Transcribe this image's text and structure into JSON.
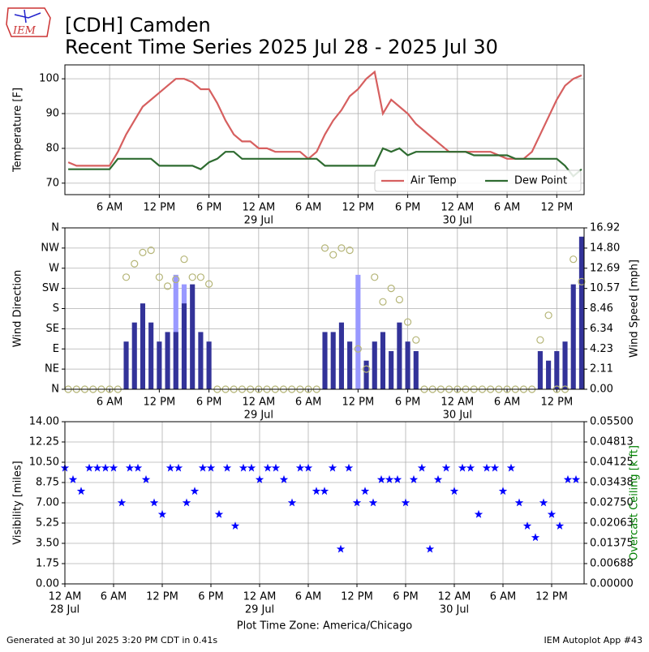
{
  "header": {
    "title": "[CDH] Camden",
    "subtitle": "Recent Time Series 2025 Jul 28 - 2025 Jul 30",
    "logo": "IEM"
  },
  "footer": {
    "left": "Generated at 30 Jul 2025 3:20 PM CDT in 0.41s",
    "right": "IEM Autoplot App #43"
  },
  "chart_data": [
    {
      "type": "line",
      "ylabel": "Temperature [F]",
      "legend": "lower right",
      "grid": true,
      "xlim": [
        0.6,
        63.3
      ],
      "ylim": [
        66.7,
        104
      ],
      "yticks": [
        70,
        80,
        90,
        100
      ],
      "xticks": [
        {
          "value": 6,
          "label": "6 AM"
        },
        {
          "value": 12,
          "label": "12 PM"
        },
        {
          "value": 18,
          "label": "6 PM"
        },
        {
          "value": 24,
          "label": "12 AM",
          "date": "29 Jul"
        },
        {
          "value": 30,
          "label": "6 AM"
        },
        {
          "value": 36,
          "label": "12 PM"
        },
        {
          "value": 42,
          "label": "6 PM"
        },
        {
          "value": 48,
          "label": "12 AM",
          "date": "30 Jul"
        },
        {
          "value": 54,
          "label": "6 AM"
        },
        {
          "value": 60,
          "label": "12 PM"
        }
      ],
      "x": [
        1,
        2,
        3,
        4,
        5,
        6,
        7,
        8,
        9,
        10,
        11,
        12,
        13,
        14,
        15,
        16,
        17,
        18,
        19,
        20,
        21,
        22,
        23,
        24,
        25,
        26,
        27,
        28,
        29,
        30,
        31,
        32,
        33,
        34,
        35,
        36,
        37,
        38,
        39,
        40,
        41,
        42,
        43,
        44,
        45,
        46,
        47,
        48,
        49,
        50,
        51,
        52,
        53,
        54,
        55,
        56,
        57,
        58,
        59,
        60,
        61,
        62,
        63
      ],
      "series": [
        {
          "name": "Air Temp",
          "color": "#d65f5f",
          "values": [
            76,
            75,
            75,
            75,
            75,
            75,
            79,
            84,
            88,
            92,
            94,
            96,
            98,
            100,
            100,
            99,
            97,
            97,
            93,
            88,
            84,
            82,
            82,
            80,
            80,
            79,
            79,
            79,
            79,
            77,
            79,
            84,
            88,
            91,
            95,
            97,
            100,
            102,
            90,
            94,
            92,
            90,
            87,
            85,
            83,
            81,
            79,
            79,
            79,
            79,
            79,
            79,
            78,
            77,
            77,
            77,
            79,
            84,
            89,
            94,
            98,
            100,
            101
          ]
        },
        {
          "name": "Dew Point",
          "color": "#2e6b30",
          "values": [
            74,
            74,
            74,
            74,
            74,
            74,
            77,
            77,
            77,
            77,
            77,
            75,
            75,
            75,
            75,
            75,
            74,
            76,
            77,
            79,
            79,
            77,
            77,
            77,
            77,
            77,
            77,
            77,
            77,
            77,
            77,
            75,
            75,
            75,
            75,
            75,
            75,
            75,
            80,
            79,
            80,
            78,
            79,
            79,
            79,
            79,
            79,
            79,
            79,
            78,
            78,
            78,
            78,
            78,
            77,
            77,
            77,
            77,
            77,
            77,
            75,
            72,
            74
          ]
        }
      ]
    },
    {
      "type": "bar",
      "ylabel": "Wind Direction",
      "y2label": "Wind Speed [mph]",
      "grid": true,
      "xlim": [
        0.6,
        63.3
      ],
      "ylim": [
        0,
        360
      ],
      "y2lim": [
        0,
        16.92
      ],
      "yticks": [
        {
          "value": 0,
          "label": "N"
        },
        {
          "value": 45,
          "label": "NE"
        },
        {
          "value": 90,
          "label": "E"
        },
        {
          "value": 135,
          "label": "SE"
        },
        {
          "value": 180,
          "label": "S"
        },
        {
          "value": 225,
          "label": "SW"
        },
        {
          "value": 270,
          "label": "W"
        },
        {
          "value": 315,
          "label": "NW"
        },
        {
          "value": 360,
          "label": "N"
        }
      ],
      "y2ticks": [
        {
          "value": 0,
          "label": "0.00"
        },
        2.11,
        4.23,
        6.34,
        8.46,
        10.57,
        12.69,
        {
          "value": 14.8,
          "label": "14.80"
        },
        16.92
      ],
      "xticks": [
        {
          "value": 6,
          "label": "6 AM"
        },
        {
          "value": 12,
          "label": "12 PM"
        },
        {
          "value": 18,
          "label": "6 PM"
        },
        {
          "value": 24,
          "label": "12 AM",
          "date": "29 Jul"
        },
        {
          "value": 30,
          "label": "6 AM"
        },
        {
          "value": 36,
          "label": "12 PM"
        },
        {
          "value": 42,
          "label": "6 PM"
        },
        {
          "value": 48,
          "label": "12 AM",
          "date": "30 Jul"
        },
        {
          "value": 54,
          "label": "6 AM"
        },
        {
          "value": 60,
          "label": "12 PM"
        }
      ],
      "x": [
        1,
        2,
        3,
        4,
        5,
        6,
        7,
        8,
        9,
        10,
        11,
        12,
        13,
        14,
        15,
        16,
        17,
        18,
        19,
        20,
        21,
        22,
        23,
        24,
        25,
        26,
        27,
        28,
        29,
        30,
        31,
        32,
        33,
        34,
        35,
        36,
        37,
        38,
        39,
        40,
        41,
        42,
        43,
        44,
        45,
        46,
        47,
        48,
        49,
        50,
        51,
        52,
        53,
        54,
        55,
        56,
        57,
        58,
        59,
        60,
        61,
        62,
        63
      ],
      "series": [
        {
          "type": "bar",
          "axis": "y2",
          "color": "#9999ff",
          "values": [
            null,
            null,
            null,
            null,
            null,
            null,
            null,
            null,
            null,
            null,
            null,
            null,
            null,
            12,
            11,
            null,
            null,
            null,
            null,
            null,
            null,
            null,
            null,
            null,
            null,
            null,
            null,
            null,
            null,
            null,
            null,
            null,
            null,
            null,
            null,
            12,
            null,
            null,
            null,
            null,
            null,
            null,
            null,
            null,
            null,
            null,
            null,
            null,
            null,
            null,
            null,
            null,
            null,
            null,
            null,
            null,
            null,
            null,
            null,
            null,
            null,
            null,
            null
          ]
        },
        {
          "type": "bar",
          "axis": "y2",
          "color": "#333399",
          "values": [
            0,
            0,
            0,
            0,
            0,
            0,
            0,
            5,
            7,
            9,
            7,
            5,
            6,
            6,
            9,
            11,
            6,
            5,
            0,
            0,
            0,
            0,
            0,
            0,
            0,
            0,
            0,
            0,
            0,
            0,
            0,
            6,
            6,
            7,
            5,
            0,
            3,
            5,
            6,
            4,
            7,
            5,
            4,
            0,
            0,
            0,
            0,
            0,
            0,
            0,
            0,
            0,
            0,
            0,
            0,
            0,
            0,
            4,
            3,
            4,
            5,
            11,
            16
          ]
        },
        {
          "type": "scatter",
          "color": "#b5b577",
          "values": [
            0,
            0,
            0,
            0,
            0,
            0,
            0,
            250,
            280,
            305,
            310,
            250,
            230,
            245,
            290,
            250,
            250,
            235,
            0,
            0,
            0,
            0,
            0,
            0,
            0,
            0,
            0,
            0,
            0,
            0,
            0,
            315,
            300,
            315,
            310,
            90,
            45,
            250,
            195,
            225,
            200,
            150,
            110,
            0,
            0,
            0,
            0,
            0,
            0,
            0,
            0,
            0,
            0,
            0,
            0,
            0,
            0,
            110,
            165,
            0,
            0,
            290,
            240
          ]
        }
      ]
    },
    {
      "type": "scatter",
      "ylabel": "Visibility [miles]",
      "y2label": "Overcast Ceiling [k ft]",
      "y2color": "#008000",
      "xlabel": "Plot Time Zone: America/Chicago",
      "grid": true,
      "xlim": [
        0,
        64
      ],
      "ylim": [
        0,
        14
      ],
      "y2lim": [
        0,
        0.055
      ],
      "yticks": [
        {
          "value": 0,
          "label": "0.00"
        },
        1.75,
        {
          "value": 3.5,
          "label": "3.50"
        },
        5.25,
        {
          "value": 7,
          "label": "7.00"
        },
        8.75,
        {
          "value": 10.5,
          "label": "10.50"
        },
        12.25,
        {
          "value": 14,
          "label": "14.00"
        }
      ],
      "y2ticks": [
        {
          "value": 0,
          "label": "0.00000"
        },
        {
          "value": 0.00688,
          "label": "0.00688"
        },
        {
          "value": 0.01375,
          "label": "0.01375"
        },
        {
          "value": 0.02063,
          "label": "0.02063"
        },
        {
          "value": 0.0275,
          "label": "0.02750"
        },
        {
          "value": 0.03438,
          "label": "0.03438"
        },
        {
          "value": 0.04125,
          "label": "0.04125"
        },
        {
          "value": 0.04813,
          "label": "0.04813"
        },
        {
          "value": 0.055,
          "label": "0.05500"
        }
      ],
      "xticks": [
        {
          "value": 0,
          "label": "12 AM",
          "date": "28 Jul"
        },
        {
          "value": 6,
          "label": "6 AM"
        },
        {
          "value": 12,
          "label": "12 PM"
        },
        {
          "value": 18,
          "label": "6 PM"
        },
        {
          "value": 24,
          "label": "12 AM",
          "date": "29 Jul"
        },
        {
          "value": 30,
          "label": "6 AM"
        },
        {
          "value": 36,
          "label": "12 PM"
        },
        {
          "value": 42,
          "label": "6 PM"
        },
        {
          "value": 48,
          "label": "12 AM",
          "date": "30 Jul"
        },
        {
          "value": 54,
          "label": "6 AM"
        },
        {
          "value": 60,
          "label": "12 PM"
        }
      ],
      "x": [
        0,
        1,
        2,
        3,
        4,
        5,
        6,
        7,
        8,
        9,
        10,
        11,
        12,
        13,
        14,
        15,
        16,
        17,
        18,
        19,
        20,
        21,
        22,
        23,
        24,
        25,
        26,
        27,
        28,
        29,
        30,
        31,
        32,
        33,
        34,
        35,
        36,
        37,
        38,
        39,
        40,
        41,
        42,
        43,
        44,
        45,
        46,
        47,
        48,
        49,
        50,
        51,
        52,
        53,
        54,
        55,
        56,
        57,
        58,
        59,
        60,
        61,
        62,
        63
      ],
      "series": [
        {
          "color": "#0000ff",
          "values": [
            10,
            9,
            8,
            10,
            10,
            10,
            10,
            7,
            10,
            10,
            9,
            7,
            6,
            10,
            10,
            7,
            8,
            10,
            10,
            6,
            10,
            5,
            10,
            10,
            9,
            10,
            10,
            9,
            7,
            10,
            10,
            8,
            8,
            10,
            3,
            10,
            7,
            8,
            7,
            9,
            9,
            9,
            7,
            9,
            10,
            3,
            9,
            10,
            8,
            10,
            10,
            6,
            10,
            10,
            8,
            10,
            7,
            5,
            4,
            7,
            6,
            5,
            9,
            9
          ]
        }
      ]
    }
  ]
}
